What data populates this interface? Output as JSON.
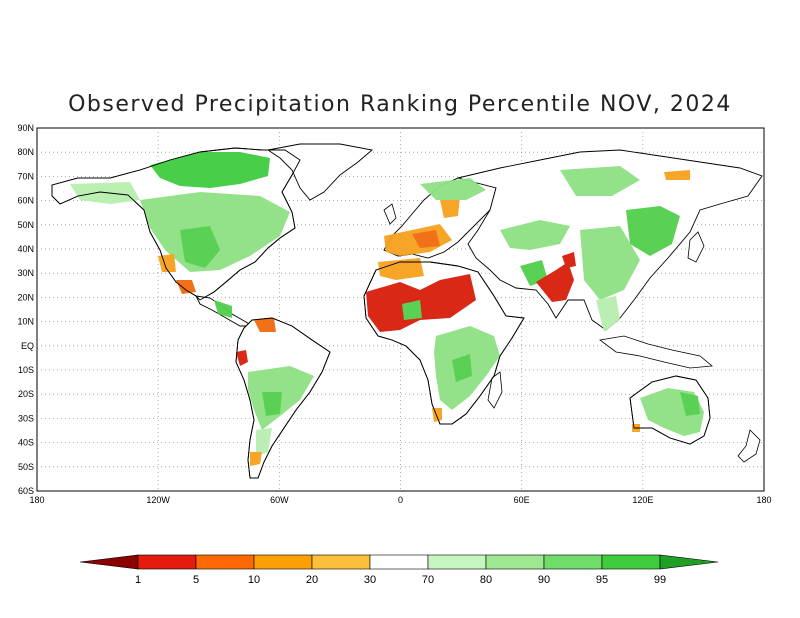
{
  "title": "Observed Precipitation Ranking Percentile NOV, 2024",
  "axes": {
    "lat_labels": [
      "90N",
      "80N",
      "70N",
      "60N",
      "50N",
      "40N",
      "30N",
      "20N",
      "10N",
      "EQ",
      "10S",
      "20S",
      "30S",
      "40S",
      "50S",
      "60S"
    ],
    "lon_labels": [
      "180",
      "120W",
      "60W",
      "0",
      "60E",
      "120E",
      "180"
    ]
  },
  "colorbar": {
    "labels": [
      "1",
      "5",
      "10",
      "20",
      "30",
      "70",
      "80",
      "90",
      "95",
      "99"
    ],
    "colors": [
      "#8b0000",
      "#e31a0c",
      "#fd6a05",
      "#fc9f05",
      "#fcbf3c",
      "#ffffff",
      "#c7f5c0",
      "#9ee891",
      "#70dd6a",
      "#3fcc3f",
      "#1f9f26"
    ]
  },
  "colors": {
    "very_dry": "#d81d0a",
    "dry": "#f06a0c",
    "moderately_dry": "#f7a11e",
    "wet_light": "#b8eeae",
    "wet": "#8ee184",
    "very_wet": "#52cf4c",
    "extreme_wet": "#2fb832"
  }
}
